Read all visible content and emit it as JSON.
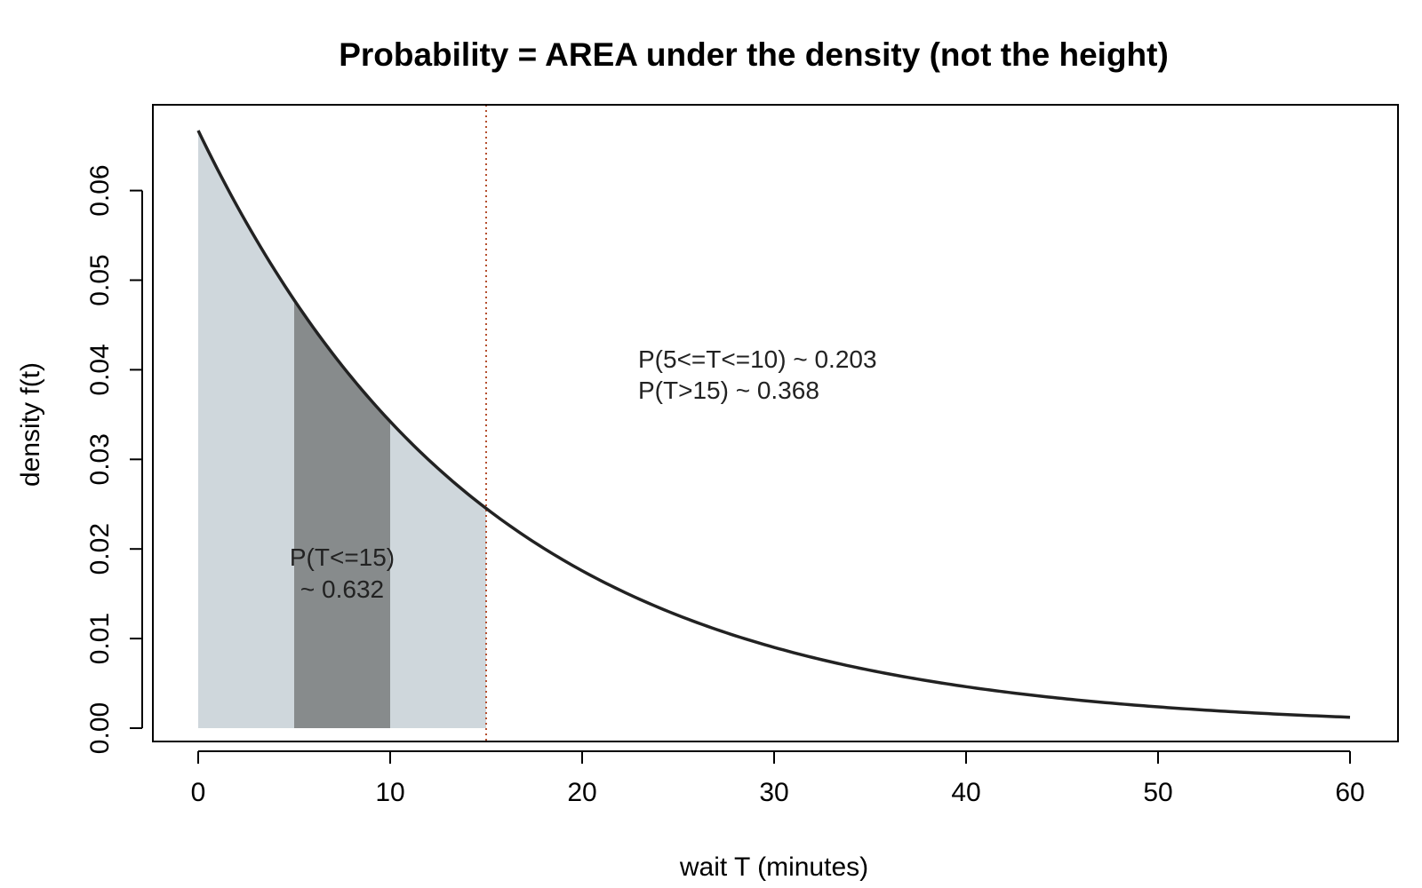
{
  "chart_data": {
    "type": "area",
    "title": "Probability = AREA under the density (not the height)",
    "xlabel": "wait T (minutes)",
    "ylabel": "density f(t)",
    "xlim": [
      0,
      60
    ],
    "ylim": [
      0,
      0.0667
    ],
    "x_ticks": [
      0,
      10,
      20,
      30,
      40,
      50,
      60
    ],
    "y_ticks": [
      0.0,
      0.01,
      0.02,
      0.03,
      0.04,
      0.05,
      0.06
    ],
    "y_tick_labels": [
      "0.00",
      "0.01",
      "0.02",
      "0.03",
      "0.04",
      "0.05",
      "0.06"
    ],
    "x_tick_labels": [
      "0",
      "10",
      "20",
      "30",
      "40",
      "50",
      "60"
    ],
    "series": [
      {
        "kind": "density_curve",
        "distribution": "exponential",
        "rate": 0.0667,
        "x": [
          0,
          2,
          4,
          5,
          6,
          8,
          10,
          12,
          14,
          15,
          16,
          18,
          20,
          22,
          24,
          26,
          28,
          30,
          32,
          34,
          36,
          38,
          40,
          42,
          44,
          46,
          48,
          50,
          52,
          54,
          56,
          58,
          60
        ],
        "y": [
          0.0667,
          0.0583,
          0.0511,
          0.0478,
          0.0447,
          0.0391,
          0.0342,
          0.0299,
          0.0262,
          0.0245,
          0.0229,
          0.0201,
          0.0176,
          0.0154,
          0.0134,
          0.0118,
          0.0103,
          0.009,
          0.0079,
          0.0069,
          0.006,
          0.0053,
          0.0046,
          0.0041,
          0.0035,
          0.0031,
          0.0027,
          0.0024,
          0.0021,
          0.0018,
          0.0016,
          0.0014,
          0.0012
        ],
        "color": "#222222"
      }
    ],
    "shaded_regions": [
      {
        "from": 0,
        "to": 15,
        "color": "#cfd7dc"
      },
      {
        "from": 5,
        "to": 10,
        "color": "#878b8c"
      }
    ],
    "reference_lines": [
      {
        "x": 15,
        "style": "dotted",
        "color": "#b5502f"
      }
    ],
    "annotations": {
      "region_label_line1": "P(T<=15)",
      "region_label_line2": "~ 0.632",
      "summary_line1": "P(5<=T<=10) ~ 0.203",
      "summary_line2": "P(T>15) ~ 0.368"
    },
    "grid": false,
    "legend": "none"
  }
}
